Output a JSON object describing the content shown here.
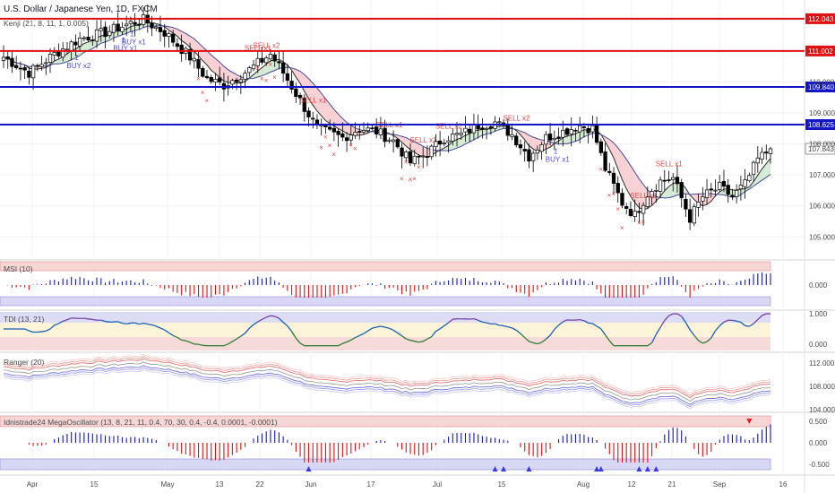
{
  "header": {
    "symbol_title": "U.S. Dollar / Japanese Yen, 1D, FXCM",
    "indicator_kenji": "Kenji (21, 8, 11, 1, 0.005)"
  },
  "colors": {
    "up_candle": "#ffffff",
    "down_candle": "#000000",
    "red_level": "#e01010",
    "blue_level": "#1515c8",
    "buy_signal": "#4b4bd8",
    "sell_signal": "#e04848",
    "cloud_bear": "#f6c9cc",
    "cloud_bull": "#cfe8cf"
  },
  "chart_data": {
    "type": "candlestick",
    "symbol": "U.S. Dollar / Japanese Yen",
    "timeframe": "1D",
    "source": "FXCM",
    "x_tick_labels": [
      "Apr",
      "15",
      "May",
      "13",
      "22",
      "Jun",
      "17",
      "Jul",
      "15",
      "Aug",
      "12",
      "21",
      "Sep",
      "16"
    ],
    "y_tick_labels": [
      "105.000",
      "106.000",
      "107.000",
      "107.843",
      "108.000",
      "108.625",
      "109.000",
      "109.840",
      "110.000",
      "111.002",
      "112.043"
    ],
    "ylim": [
      104.4,
      112.3
    ],
    "levels": [
      {
        "price": 112.043,
        "label": "112.043",
        "color": "red"
      },
      {
        "price": 111.002,
        "label": "111.002",
        "color": "red"
      },
      {
        "price": 109.84,
        "label": "109.840",
        "color": "blue"
      },
      {
        "price": 108.625,
        "label": "108.625",
        "color": "blue"
      }
    ],
    "last_price": 107.843,
    "signals": [
      {
        "bar": 17,
        "text": "BUY x2",
        "type": "buy"
      },
      {
        "bar": 28,
        "text": "BUY x1",
        "type": "buy"
      },
      {
        "bar": 30,
        "text": "BUY x1",
        "type": "buy"
      },
      {
        "bar": 61,
        "text": "SELL x2",
        "type": "sell"
      },
      {
        "bar": 59,
        "text": "SELL x1",
        "type": "sell"
      },
      {
        "bar": 72,
        "text": "SELL x1",
        "type": "sell"
      },
      {
        "bar": 90,
        "text": "SELL x1",
        "type": "sell"
      },
      {
        "bar": 98,
        "text": "SELL x1",
        "type": "sell"
      },
      {
        "bar": 104,
        "text": "SELL x2",
        "type": "sell"
      },
      {
        "bar": 120,
        "text": "SELL x2",
        "type": "sell"
      },
      {
        "bar": 130,
        "text": "BUY x1",
        "type": "buy"
      },
      {
        "bar": 150,
        "text": "SELL x1",
        "type": "sell"
      },
      {
        "bar": 156,
        "text": "SELL x1",
        "type": "sell"
      }
    ],
    "panels": [
      {
        "name": "MSI (10)",
        "type": "histogram",
        "tick_labels": [
          "0.000"
        ]
      },
      {
        "name": "TDI (13, 21)",
        "type": "line",
        "tick_labels": [
          "1.000",
          "0.000"
        ]
      },
      {
        "name": "Ranger (20)",
        "type": "bands",
        "tick_labels": [
          "112.000",
          "108.000",
          "104.000"
        ]
      },
      {
        "name": "Idnistrade24 MegaOscillator (13, 8, 21, 11, 0.4, 70, 30, 0.4, -0.4, 0.0001, -0.0001)",
        "type": "histogram",
        "tick_labels": [
          "0.500",
          "0.000",
          "-0.500"
        ]
      }
    ],
    "waypoints": [
      [
        0,
        110.8
      ],
      [
        6,
        110.3
      ],
      [
        12,
        110.9
      ],
      [
        18,
        111.4
      ],
      [
        24,
        111.6
      ],
      [
        30,
        111.9
      ],
      [
        33,
        112.0
      ],
      [
        38,
        111.6
      ],
      [
        44,
        110.8
      ],
      [
        48,
        110.1
      ],
      [
        52,
        109.9
      ],
      [
        58,
        110.4
      ],
      [
        63,
        110.9
      ],
      [
        66,
        110.3
      ],
      [
        70,
        109.4
      ],
      [
        74,
        108.5
      ],
      [
        80,
        108.2
      ],
      [
        84,
        108.5
      ],
      [
        88,
        108.4
      ],
      [
        92,
        108.1
      ],
      [
        96,
        107.4
      ],
      [
        100,
        107.7
      ],
      [
        104,
        108.2
      ],
      [
        108,
        108.3
      ],
      [
        112,
        108.6
      ],
      [
        116,
        108.7
      ],
      [
        120,
        108.3
      ],
      [
        124,
        107.6
      ],
      [
        128,
        108.2
      ],
      [
        132,
        108.4
      ],
      [
        136,
        108.6
      ],
      [
        139,
        108.5
      ],
      [
        142,
        107.2
      ],
      [
        146,
        106.1
      ],
      [
        149,
        105.7
      ],
      [
        152,
        106.4
      ],
      [
        155,
        106.8
      ],
      [
        158,
        106.9
      ],
      [
        162,
        105.6
      ],
      [
        165,
        106.3
      ],
      [
        169,
        106.6
      ],
      [
        172,
        106.3
      ],
      [
        175,
        106.7
      ],
      [
        178,
        107.5
      ],
      [
        181,
        107.84
      ]
    ]
  }
}
